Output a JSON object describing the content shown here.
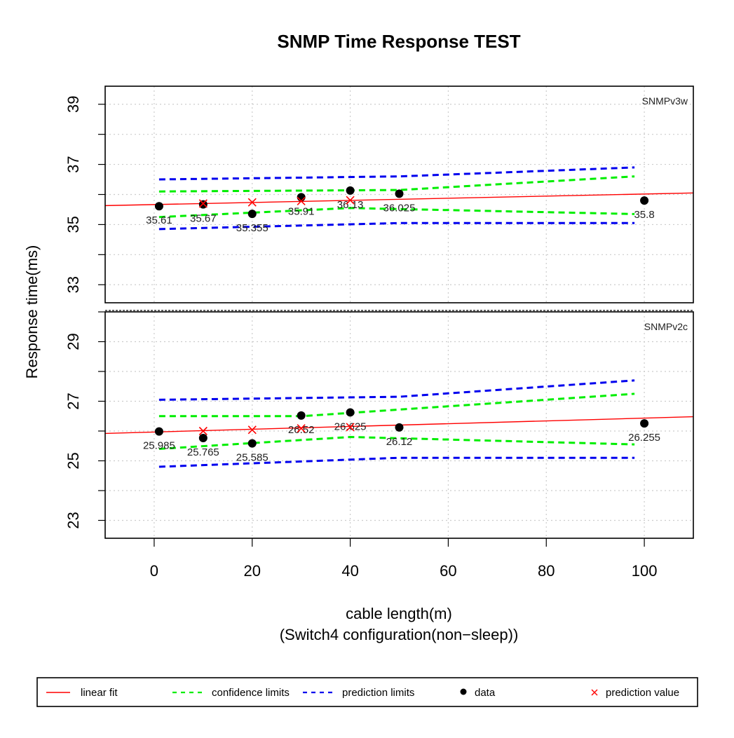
{
  "title": "SNMP Time Response TEST",
  "xlabel": "cable length(m)",
  "xsublabel": "(Switch4 configuration(non−sleep))",
  "ylabel": "Response time(ms)",
  "colors": {
    "fit": "#ff0000",
    "confidence": "#00ee00",
    "prediction": "#0000ee",
    "data": "#000000",
    "prediction_value": "#ff0000",
    "grid": "#cccccc"
  },
  "legend": {
    "items": [
      {
        "key": "fit",
        "label": "linear fit"
      },
      {
        "key": "confidence",
        "label": "confidence limits"
      },
      {
        "key": "prediction",
        "label": "prediction limits"
      },
      {
        "key": "data",
        "label": "data"
      },
      {
        "key": "prediction_value",
        "label": "prediction value"
      }
    ]
  },
  "chart_data": [
    {
      "type": "scatter",
      "panel": "SNMPv3w",
      "xlim": [
        -10,
        110
      ],
      "ylim": [
        32.4,
        39.6
      ],
      "x_ticks": [
        0,
        20,
        40,
        60,
        80,
        100
      ],
      "y_ticks": [
        33,
        35,
        37,
        39
      ],
      "grid": true,
      "points": [
        {
          "x": 1,
          "y": 35.61,
          "label": "35.61"
        },
        {
          "x": 10,
          "y": 35.67,
          "label": "35.67"
        },
        {
          "x": 20,
          "y": 35.355,
          "label": "35.355"
        },
        {
          "x": 30,
          "y": 35.91,
          "label": "35.91"
        },
        {
          "x": 40,
          "y": 36.13,
          "label": "36.13"
        },
        {
          "x": 50,
          "y": 36.025,
          "label": "36.025"
        },
        {
          "x": 100,
          "y": 35.8,
          "label": "35.8"
        }
      ],
      "fit_line": [
        [
          -10,
          35.63
        ],
        [
          110,
          36.05
        ]
      ],
      "confidence_upper": [
        [
          1,
          36.1
        ],
        [
          50,
          36.15
        ],
        [
          98,
          36.6
        ]
      ],
      "confidence_lower": [
        [
          1,
          35.25
        ],
        [
          40,
          35.55
        ],
        [
          98,
          35.35
        ]
      ],
      "prediction_upper": [
        [
          1,
          36.5
        ],
        [
          50,
          36.6
        ],
        [
          98,
          36.9
        ]
      ],
      "prediction_lower": [
        [
          1,
          34.85
        ],
        [
          50,
          35.05
        ],
        [
          98,
          35.05
        ]
      ],
      "prediction_values": [
        {
          "x": 10,
          "y": 35.7
        },
        {
          "x": 20,
          "y": 35.74
        },
        {
          "x": 30,
          "y": 35.78
        },
        {
          "x": 40,
          "y": 35.81
        }
      ]
    },
    {
      "type": "scatter",
      "panel": "SNMPv2c",
      "xlim": [
        -10,
        110
      ],
      "ylim": [
        22.4,
        30.0
      ],
      "x_ticks": [
        0,
        20,
        40,
        60,
        80,
        100
      ],
      "y_ticks": [
        23,
        25,
        27,
        29
      ],
      "grid": true,
      "points": [
        {
          "x": 1,
          "y": 25.985,
          "label": "25.985"
        },
        {
          "x": 10,
          "y": 25.765,
          "label": "25.765"
        },
        {
          "x": 20,
          "y": 25.585,
          "label": "25.585"
        },
        {
          "x": 30,
          "y": 26.52,
          "label": "26.52"
        },
        {
          "x": 40,
          "y": 26.625,
          "label": "26.625"
        },
        {
          "x": 50,
          "y": 26.12,
          "label": "26.12"
        },
        {
          "x": 100,
          "y": 26.255,
          "label": "26.255"
        }
      ],
      "fit_line": [
        [
          -10,
          25.92
        ],
        [
          110,
          26.48
        ]
      ],
      "confidence_upper": [
        [
          1,
          26.5
        ],
        [
          30,
          26.5
        ],
        [
          98,
          27.25
        ]
      ],
      "confidence_lower": [
        [
          1,
          25.4
        ],
        [
          40,
          25.8
        ],
        [
          98,
          25.55
        ]
      ],
      "prediction_upper": [
        [
          1,
          27.05
        ],
        [
          50,
          27.15
        ],
        [
          98,
          27.7
        ]
      ],
      "prediction_lower": [
        [
          1,
          24.8
        ],
        [
          50,
          25.1
        ],
        [
          98,
          25.1
        ]
      ],
      "prediction_values": [
        {
          "x": 10,
          "y": 26.0
        },
        {
          "x": 20,
          "y": 26.04
        },
        {
          "x": 30,
          "y": 26.09
        },
        {
          "x": 40,
          "y": 26.13
        }
      ]
    }
  ]
}
